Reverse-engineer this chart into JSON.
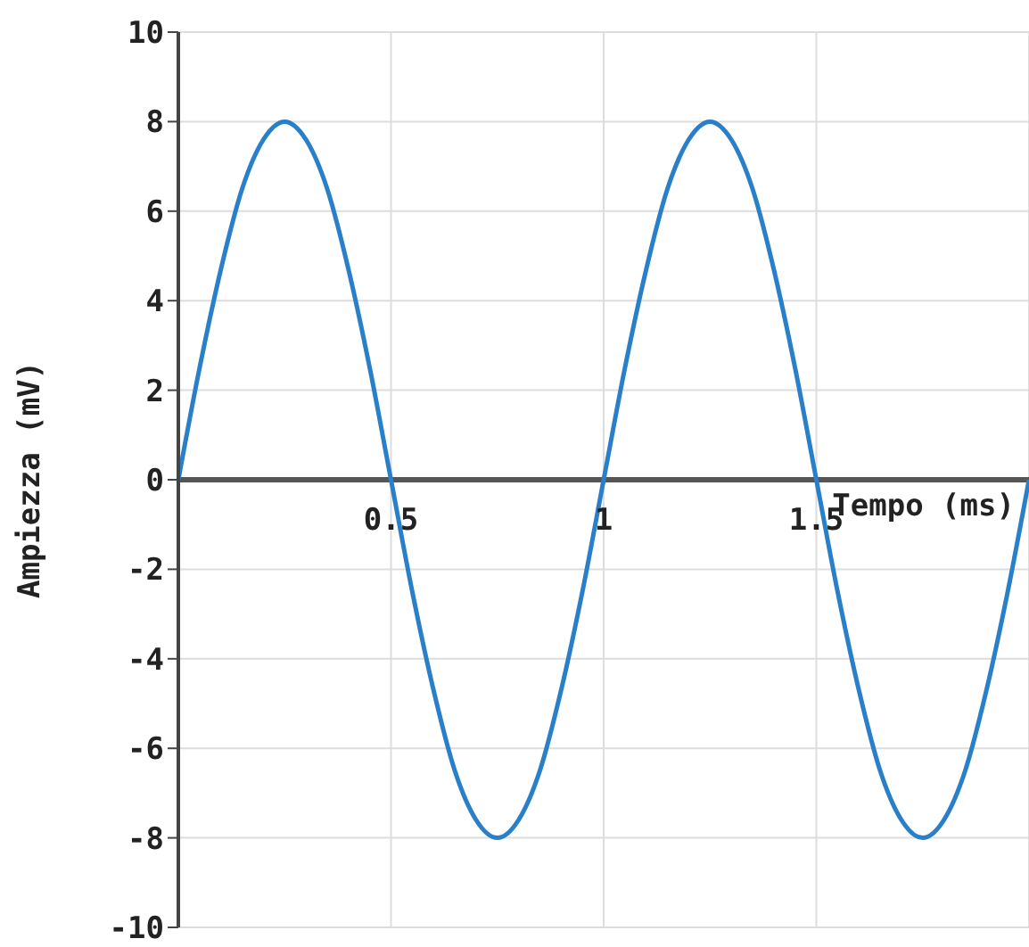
{
  "chart_data": {
    "type": "line",
    "xlabel": "Tempo (ms)",
    "ylabel": "Ampiezza (mV)",
    "x": [
      0,
      0.05,
      0.1,
      0.15,
      0.2,
      0.25,
      0.3,
      0.35,
      0.4,
      0.45,
      0.5,
      0.55,
      0.6,
      0.65,
      0.7,
      0.75,
      0.8,
      0.85,
      0.9,
      0.95,
      1,
      1.05,
      1.1,
      1.15,
      1.2,
      1.25,
      1.3,
      1.35,
      1.4,
      1.45,
      1.5,
      1.55,
      1.6,
      1.65,
      1.7,
      1.75,
      1.8,
      1.85,
      1.9,
      1.95,
      2
    ],
    "series": [
      {
        "color": "#2a7fc9",
        "values": [
          0,
          2.5,
          4.7,
          6.5,
          7.6,
          8,
          7.6,
          6.5,
          4.7,
          2.5,
          0,
          -2.5,
          -4.7,
          -6.5,
          -7.6,
          -8,
          -7.6,
          -6.5,
          -4.7,
          -2.5,
          0,
          2.5,
          4.7,
          6.5,
          7.6,
          8,
          7.6,
          6.5,
          4.7,
          2.5,
          0,
          -2.5,
          -4.7,
          -6.5,
          -7.6,
          -8,
          -7.6,
          -6.5,
          -4.7,
          -2.5,
          0
        ]
      }
    ],
    "xlim": [
      0,
      2
    ],
    "xticks": [
      0.5,
      1,
      1.5
    ],
    "ylim": [
      -10,
      10
    ],
    "yticks": [
      -10,
      -8,
      -6,
      -4,
      -2,
      0,
      2,
      4,
      6,
      8,
      10
    ],
    "grid": true,
    "marker": "none",
    "line_style": "solid"
  }
}
